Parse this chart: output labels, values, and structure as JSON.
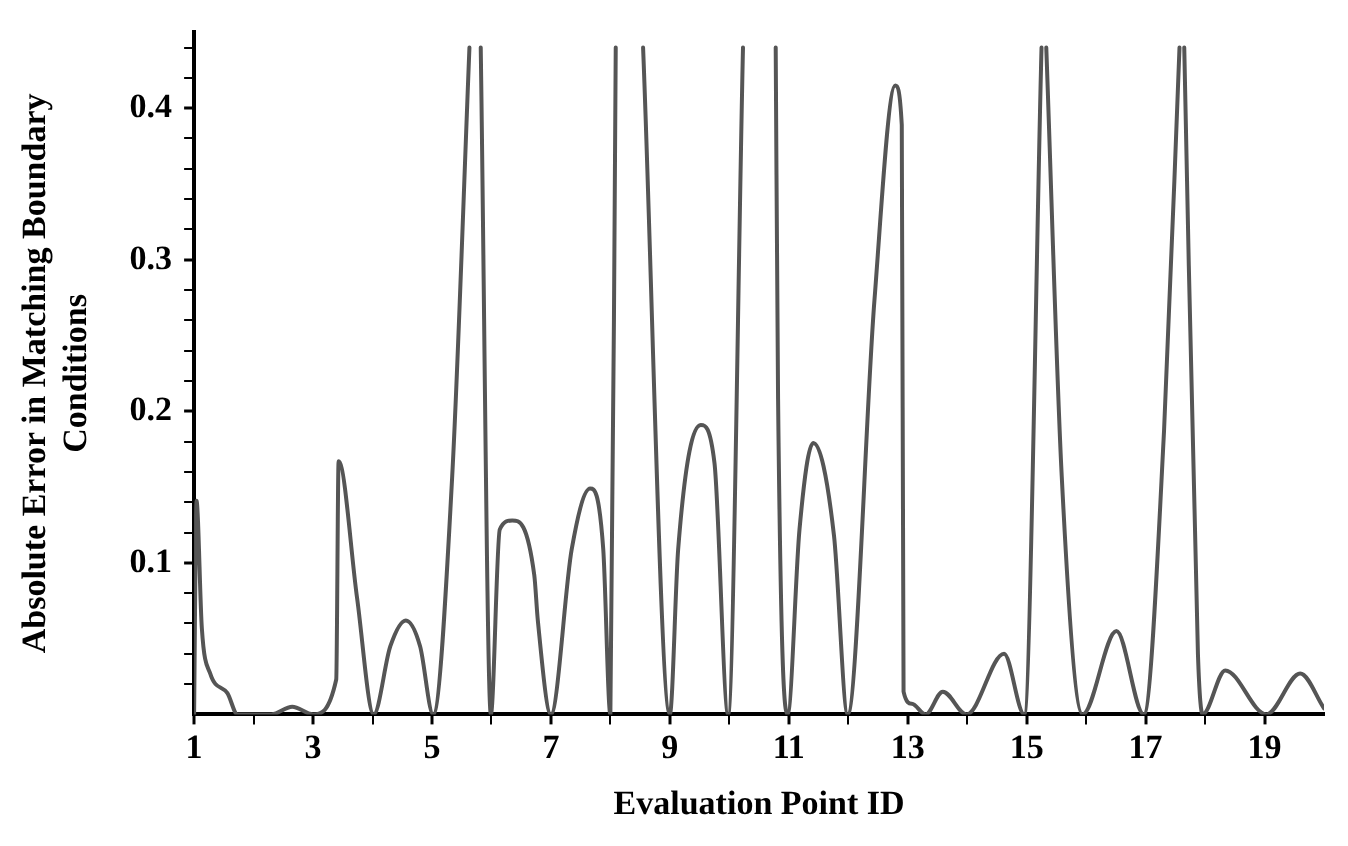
{
  "chart_data": {
    "type": "line",
    "xlabel": "Evaluation Point ID",
    "ylabel": "Absolute Error in Matching Boundary Conditions",
    "x": [
      1.0,
      1.04,
      1.13,
      1.27,
      1.56,
      1.73,
      2.3,
      2.65,
      3.0,
      3.39,
      3.43,
      3.74,
      4.02,
      4.3,
      4.56,
      4.8,
      5.02,
      5.34,
      5.63,
      5.7,
      5.82,
      5.99,
      6.14,
      6.35,
      6.72,
      6.78,
      7.0,
      7.35,
      7.66,
      7.88,
      8.0,
      8.09,
      8.3,
      8.55,
      9.0,
      9.14,
      9.52,
      9.75,
      9.98,
      10.23,
      10.5,
      10.78,
      10.82,
      10.98,
      11.18,
      11.41,
      11.76,
      11.99,
      12.44,
      12.79,
      12.9,
      12.93,
      13.07,
      13.3,
      13.59,
      13.99,
      14.62,
      14.96,
      15.25,
      15.29,
      15.33,
      15.59,
      15.94,
      16.51,
      16.97,
      17.31,
      17.57,
      17.61,
      17.65,
      17.88,
      17.96,
      18.34,
      19.03,
      19.6,
      20.0
    ],
    "series": [
      {
        "color": "#555555",
        "values": [
          0,
          0.141,
          0.057,
          0.027,
          0.014,
          0,
          0,
          0.005,
          0,
          0.023,
          0.167,
          0.077,
          0,
          0.045,
          0.062,
          0.045,
          0,
          0.157,
          0.44,
          null,
          0.44,
          0,
          0.122,
          0.128,
          0.092,
          0.062,
          0,
          0.109,
          0.149,
          0.109,
          0,
          0.44,
          null,
          0.44,
          0,
          0.109,
          0.191,
          0.166,
          0,
          0.44,
          null,
          0.44,
          0.208,
          0,
          0.122,
          0.179,
          0.118,
          0,
          0.273,
          0.415,
          0.389,
          0.015,
          0.007,
          0,
          0.015,
          0,
          0.04,
          0,
          0.44,
          null,
          0.44,
          0.157,
          0,
          0.055,
          0,
          0.187,
          0.44,
          null,
          0.44,
          0.04,
          0,
          0.029,
          0,
          0.027,
          0.004
        ]
      }
    ],
    "xlim": [
      1,
      20
    ],
    "xticks": [
      1,
      {
        "value": 2,
        "label": null
      },
      3,
      {
        "value": 4,
        "label": null
      },
      5,
      {
        "value": 6,
        "label": null
      },
      7,
      {
        "value": 8,
        "label": null
      },
      9,
      {
        "value": 10,
        "label": null
      },
      11,
      {
        "value": 12,
        "label": null
      },
      13,
      {
        "value": 14,
        "label": null
      },
      15,
      {
        "value": 16,
        "label": null
      },
      17,
      {
        "value": 18,
        "label": null
      },
      19
    ],
    "ylim": [
      0,
      0.45
    ],
    "yticks": [
      {
        "value": 0.02,
        "label": null
      },
      {
        "value": 0.04,
        "label": null
      },
      {
        "value": 0.06,
        "label": null
      },
      {
        "value": 0.08,
        "label": null
      },
      0.1,
      {
        "value": 0.12,
        "label": null
      },
      {
        "value": 0.14,
        "label": null
      },
      {
        "value": 0.16,
        "label": null
      },
      {
        "value": 0.18,
        "label": null
      },
      0.2,
      {
        "value": 0.22,
        "label": null
      },
      {
        "value": 0.24,
        "label": null
      },
      {
        "value": 0.26,
        "label": null
      },
      {
        "value": 0.28,
        "label": null
      },
      0.3,
      {
        "value": 0.32,
        "label": null
      },
      {
        "value": 0.34,
        "label": null
      },
      {
        "value": 0.36,
        "label": null
      },
      {
        "value": 0.38,
        "label": null
      },
      0.4,
      {
        "value": 0.42,
        "label": null
      },
      {
        "value": 0.44,
        "label": null
      }
    ],
    "grid": false,
    "legend": false,
    "marker": "none",
    "line_style": "solid"
  }
}
